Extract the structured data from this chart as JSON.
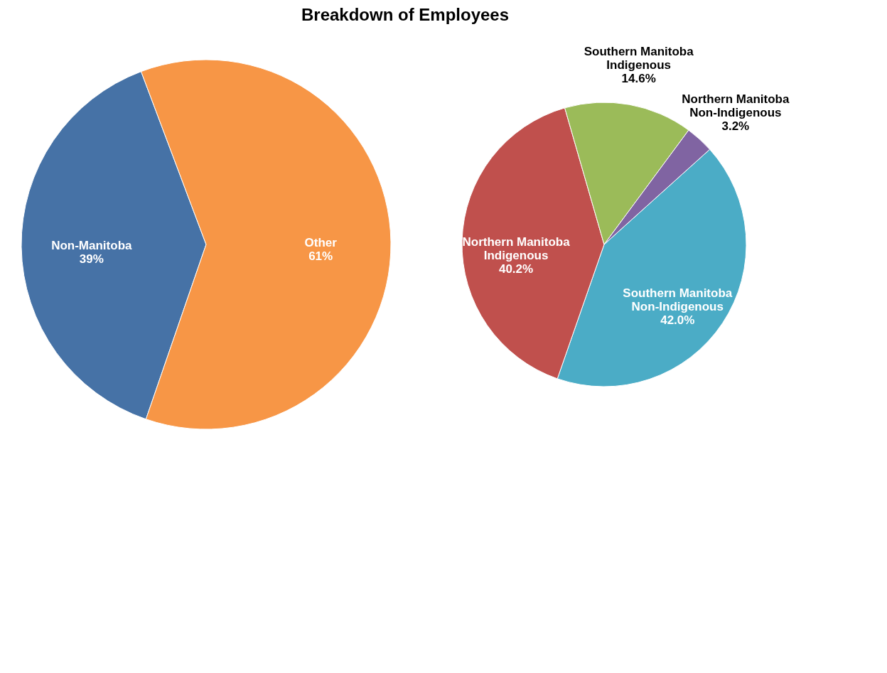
{
  "chart_data": [
    {
      "type": "pie",
      "title": "Breakdown of Employees",
      "categories": [
        "Non-Manitoba",
        "Other"
      ],
      "values": [
        39,
        61
      ],
      "colors": [
        "#4672a6",
        "#f79646"
      ],
      "value_labels": [
        "39%",
        "61%"
      ],
      "legend": false
    },
    {
      "type": "pie",
      "categories": [
        "Southern Manitoba Non-Indigenous",
        "Northern Manitoba Indigenous",
        "Southern Manitoba Indigenous",
        "Northern Manitoba Non-Indigenous"
      ],
      "values": [
        42.0,
        40.2,
        14.6,
        3.2
      ],
      "colors": [
        "#4bacc6",
        "#c0504d",
        "#9bbb59",
        "#8064a2"
      ],
      "value_labels": [
        "42.0%",
        "40.2%",
        "14.6%",
        "3.2%"
      ],
      "legend": false
    }
  ]
}
